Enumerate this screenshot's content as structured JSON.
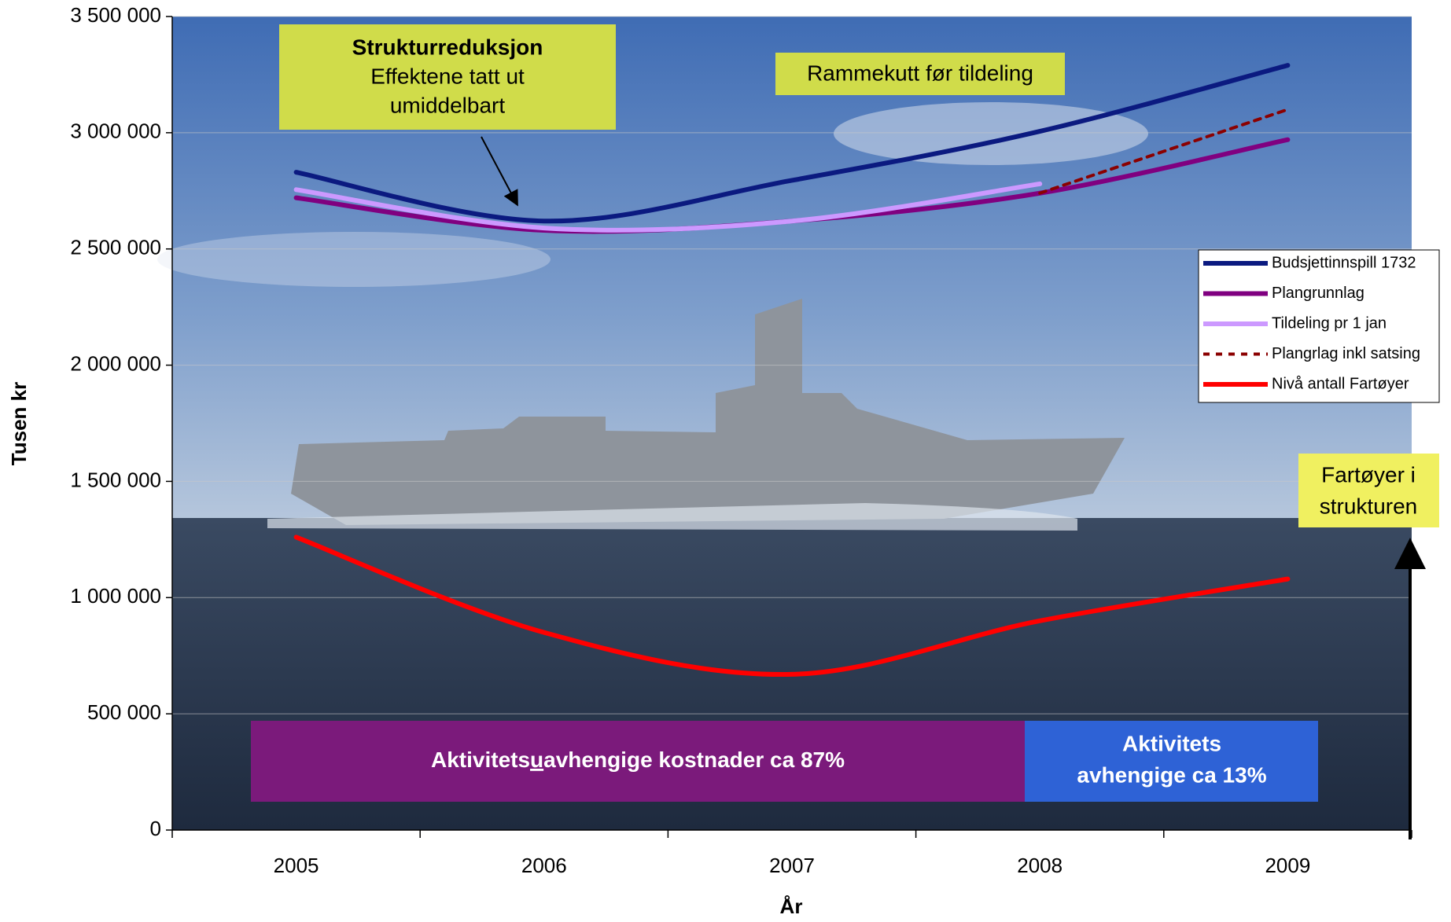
{
  "chart_data": {
    "type": "line",
    "x_label": "År",
    "y_label": "Tusen kr",
    "categories": [
      "2005",
      "2006",
      "2007",
      "2008",
      "2009"
    ],
    "ylim": [
      0,
      3500000
    ],
    "yticks": [
      0,
      {
        "value": 500000,
        "label": "500 000"
      },
      {
        "value": 1000000,
        "label": "1 000 000"
      },
      {
        "value": 1500000,
        "label": "1 500 000"
      },
      {
        "value": 2000000,
        "label": "2 000 000"
      },
      {
        "value": 2500000,
        "label": "2 500 000"
      },
      {
        "value": 3000000,
        "label": "3 000 000"
      },
      {
        "value": 3500000,
        "label": "3 500 000"
      }
    ],
    "grid": true,
    "legend": "right",
    "series": [
      {
        "name": "Budsjettinnspill 1732",
        "color": "#0b1a80",
        "values": [
          2830000,
          2620000,
          2795000,
          3006000,
          3290000
        ]
      },
      {
        "name": "Plangrunnlag",
        "color": "#800080",
        "values": [
          2720000,
          2580000,
          2620000,
          2740000,
          2970000
        ]
      },
      {
        "name": "Tildeling pr 1 jan",
        "color": "#cc99ff",
        "values": [
          2755000,
          2590000,
          2620000,
          2780000,
          null
        ]
      },
      {
        "name": "Plangrlag inkl satsing",
        "color": "#8b0000",
        "dash": true,
        "values": [
          null,
          null,
          null,
          2740000,
          3100000
        ]
      },
      {
        "name": "Nivå antall Fartøyer",
        "color": "#ff0000",
        "values": [
          1260000,
          850000,
          670000,
          900000,
          1080000
        ]
      }
    ],
    "annotations": {
      "struktur_title": "Strukturreduksjon",
      "struktur_line1": "Effektene tatt ut",
      "struktur_line2": "umiddelbart",
      "rammekutt": "Rammekutt før tildeling",
      "uavh": [
        "Aktivitets",
        "u",
        "avhengige kostnader ca 87%"
      ],
      "avh_line1": "Aktivitets",
      "avh_line2": "avhengige ca 13%",
      "fartoyer_line1": "Fartøyer i",
      "fartoyer_line2": "strukturen"
    }
  }
}
